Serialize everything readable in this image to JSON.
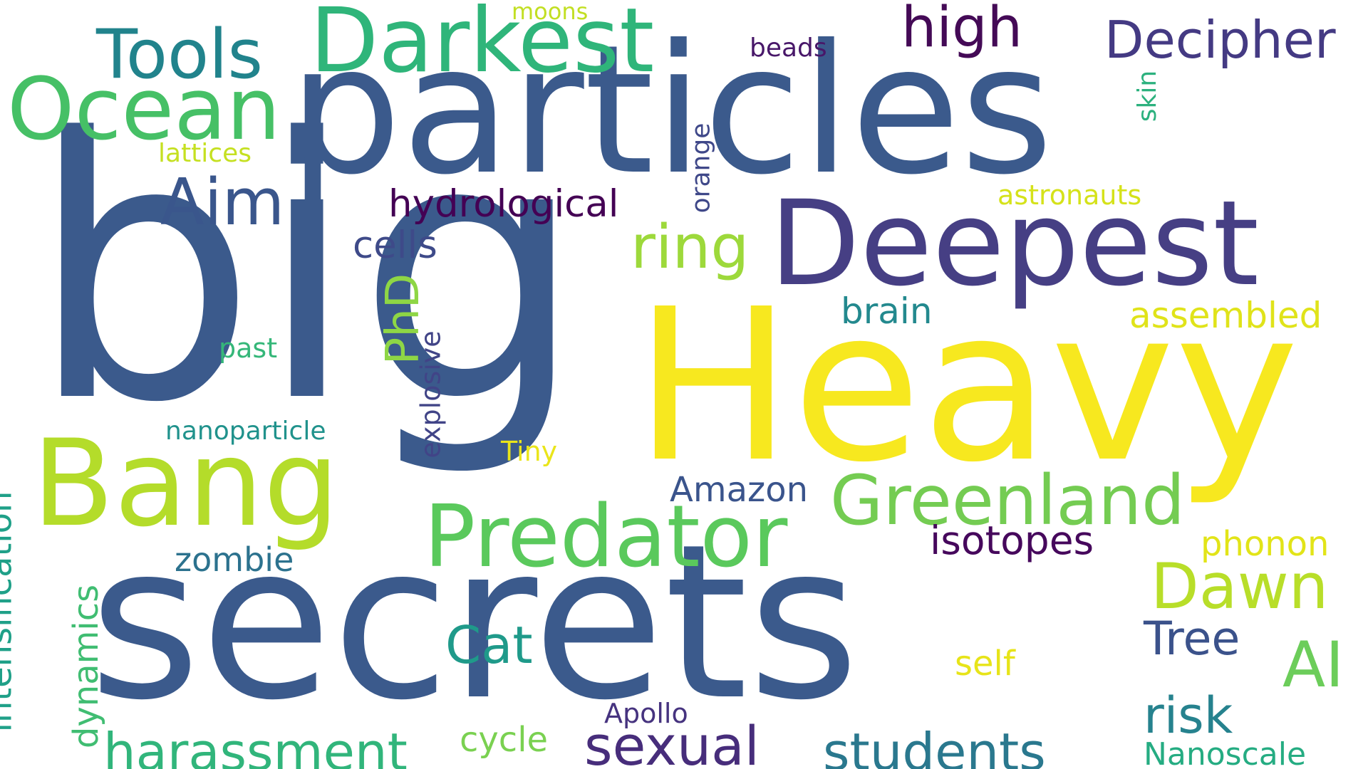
{
  "words": [
    {
      "text": "big",
      "color": "#3b5a8c"
    },
    {
      "text": "particles",
      "color": "#3b5a8c"
    },
    {
      "text": "Heavy",
      "color": "#f7e81f"
    },
    {
      "text": "secrets",
      "color": "#3b5a8c"
    },
    {
      "text": "Deepest",
      "color": "#463f84"
    },
    {
      "text": "Bang",
      "color": "#b4dc2a"
    },
    {
      "text": "Darkest",
      "color": "#2fb57a"
    },
    {
      "text": "Ocean",
      "color": "#46c066"
    },
    {
      "text": "Tools",
      "color": "#21838c"
    },
    {
      "text": "Predator",
      "color": "#5ac95c"
    },
    {
      "text": "Greenland",
      "color": "#74cc52"
    },
    {
      "text": "Decipher",
      "color": "#443a83"
    },
    {
      "text": "high",
      "color": "#440a56"
    },
    {
      "text": "Aim",
      "color": "#3a568c"
    },
    {
      "text": "ring",
      "color": "#9dd93b"
    },
    {
      "text": "Dawn",
      "color": "#b8de29"
    },
    {
      "text": "AI",
      "color": "#6ccd5a"
    },
    {
      "text": "Tree",
      "color": "#3b528b"
    },
    {
      "text": "Cat",
      "color": "#1f9a8a"
    },
    {
      "text": "risk",
      "color": "#26828e"
    },
    {
      "text": "sexual",
      "color": "#472d7b"
    },
    {
      "text": "students",
      "color": "#2a788e"
    },
    {
      "text": "harassment",
      "color": "#31b57b"
    },
    {
      "text": "hydrological",
      "color": "#440154"
    },
    {
      "text": "cells",
      "color": "#3e4a89"
    },
    {
      "text": "brain",
      "color": "#23898e"
    },
    {
      "text": "assembled",
      "color": "#e0e31a"
    },
    {
      "text": "isotopes",
      "color": "#46085c"
    },
    {
      "text": "phonon",
      "color": "#e2e418"
    },
    {
      "text": "Amazon",
      "color": "#3a548c"
    },
    {
      "text": "zombie",
      "color": "#2c728e"
    },
    {
      "text": "nanoparticle",
      "color": "#20928c"
    },
    {
      "text": "Tiny",
      "color": "#eae51a"
    },
    {
      "text": "self",
      "color": "#e7e419"
    },
    {
      "text": "Apollo",
      "color": "#46337f"
    },
    {
      "text": "cycle",
      "color": "#7ad151"
    },
    {
      "text": "Nanoscale",
      "color": "#25ac82"
    },
    {
      "text": "lattices",
      "color": "#c5e021"
    },
    {
      "text": "astronauts",
      "color": "#d5e21a"
    },
    {
      "text": "moons",
      "color": "#c2df23"
    },
    {
      "text": "beads",
      "color": "#481769"
    },
    {
      "text": "past",
      "color": "#35b779"
    },
    {
      "text": "orange",
      "color": "#3f4889"
    },
    {
      "text": "skin",
      "color": "#2cb17e"
    },
    {
      "text": "PhD",
      "color": "#8ed645"
    },
    {
      "text": "explosive",
      "color": "#414487"
    },
    {
      "text": "intensification",
      "color": "#1fa088"
    },
    {
      "text": "dynamics",
      "color": "#40bd72"
    }
  ]
}
